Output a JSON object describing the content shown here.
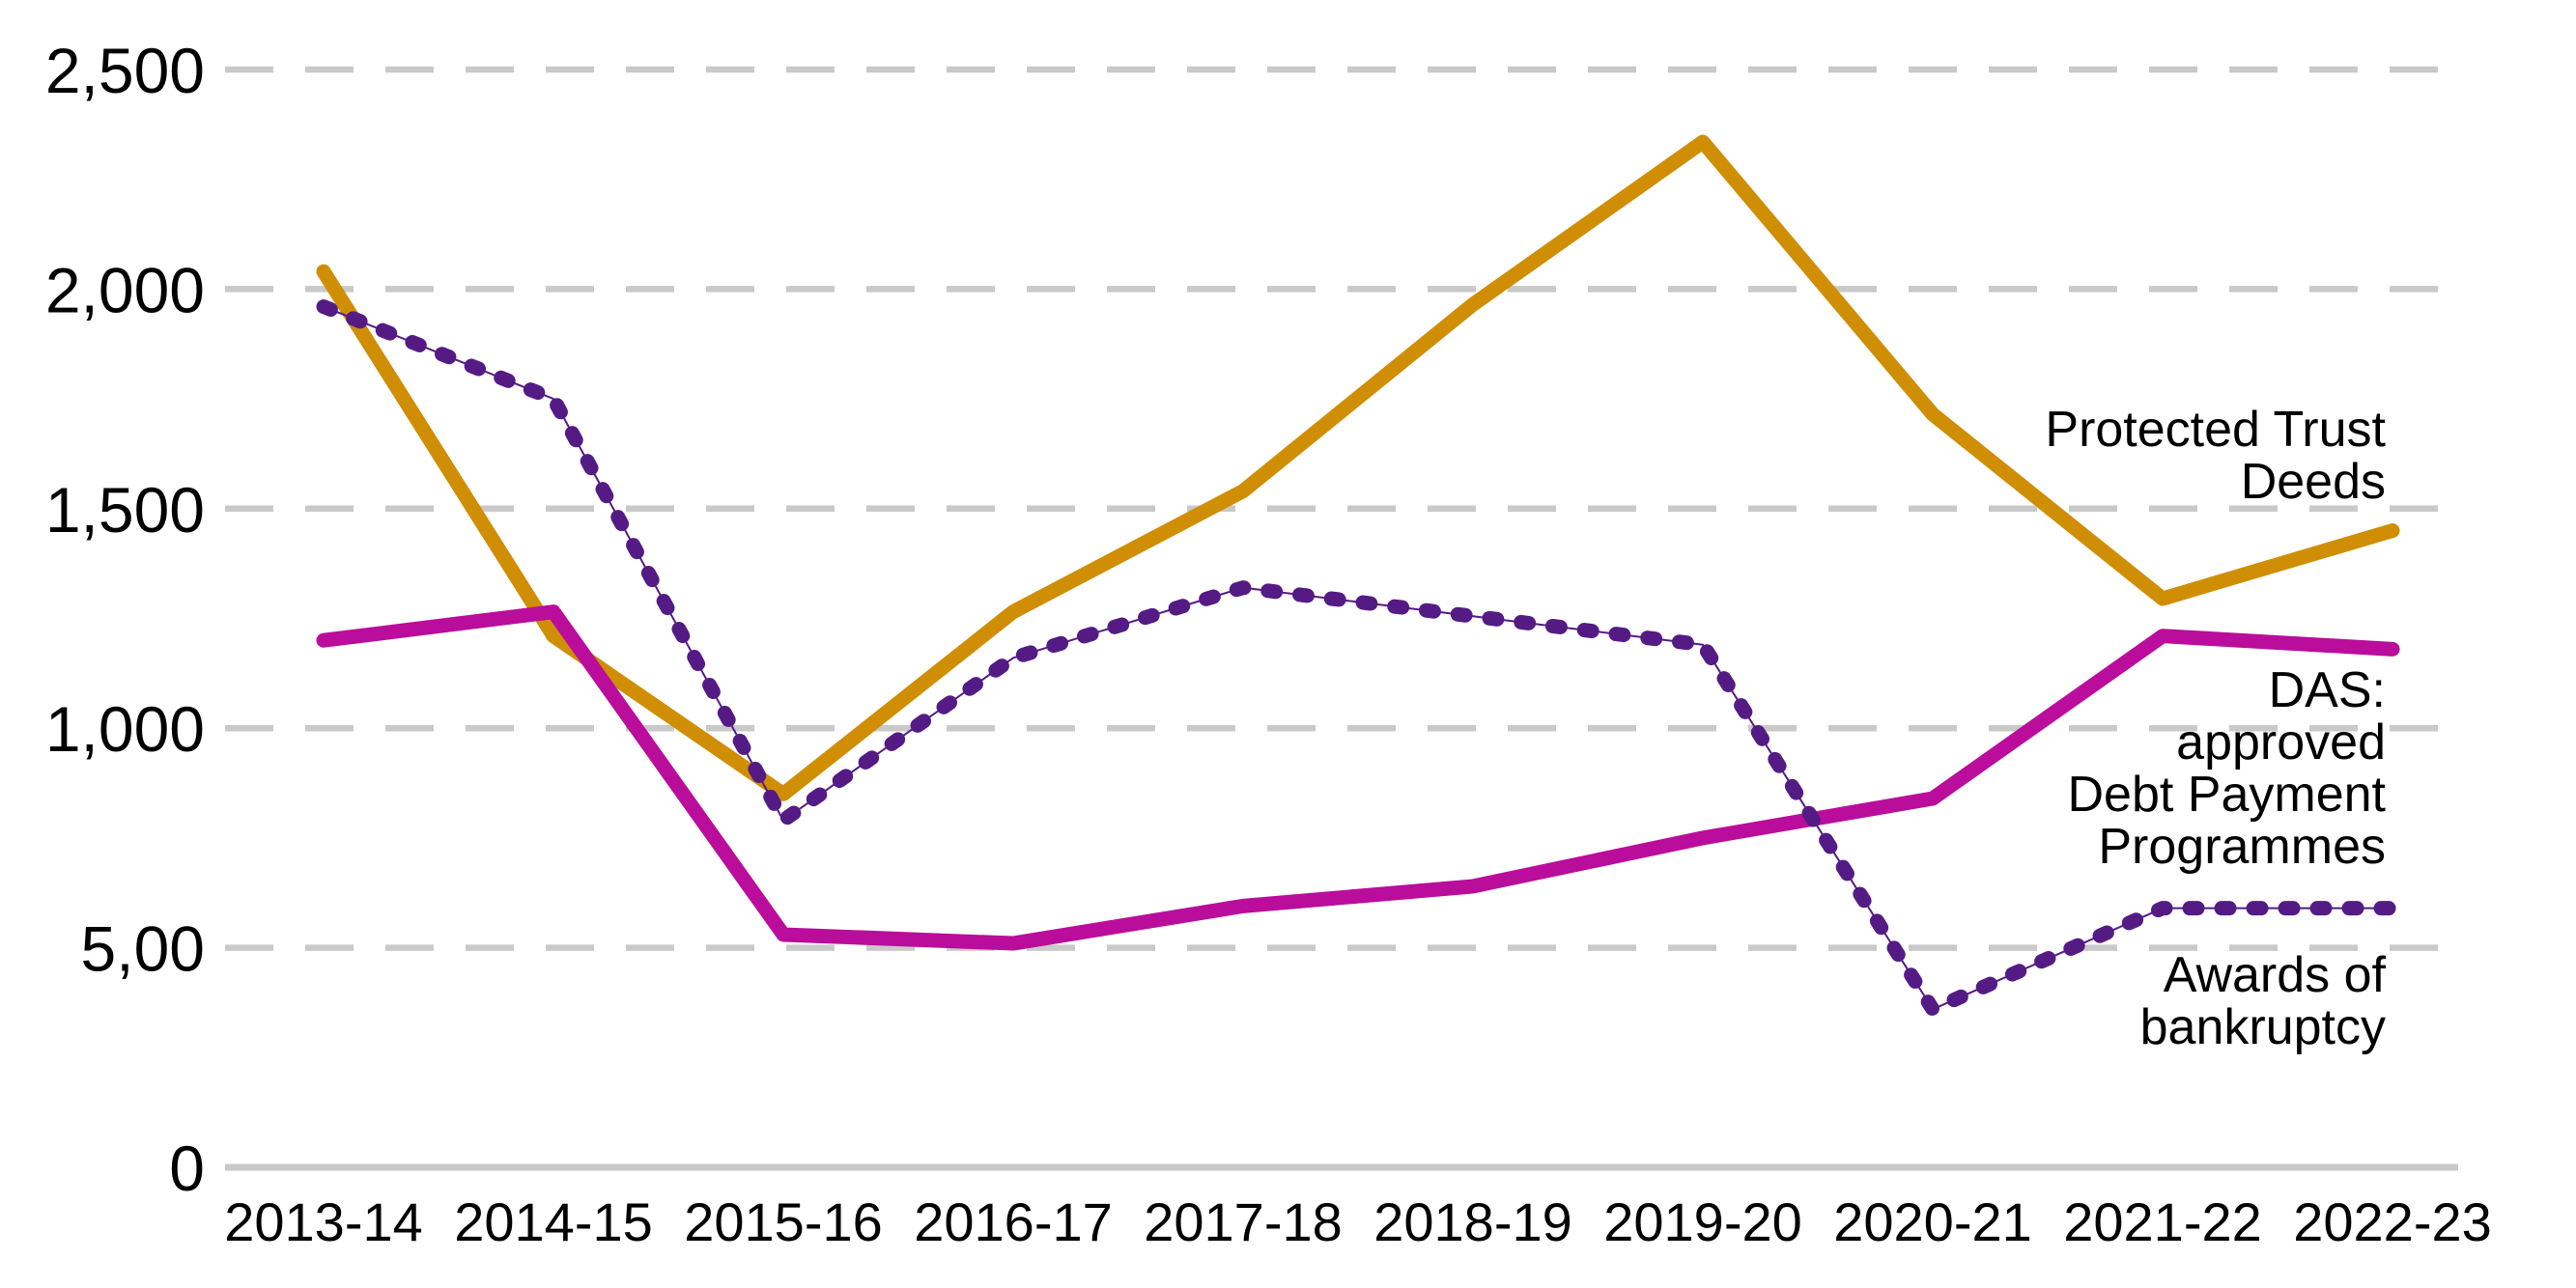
{
  "chart_data": {
    "type": "line",
    "title": "",
    "categories": [
      "2013-14",
      "2014-15",
      "2015-16",
      "2016-17",
      "2017-18",
      "2018-19",
      "2019-20",
      "2020-21",
      "2021-22",
      "2022-23"
    ],
    "y_axis": {
      "tick_labels": [
        "0",
        "5,00",
        "1,000",
        "1,500",
        "2,000",
        "2,500"
      ],
      "tick_values": [
        0,
        500,
        1000,
        1500,
        2000,
        2500
      ],
      "min": 0,
      "max": 2500,
      "gridlines": "dashed-horizontal"
    },
    "series": [
      {
        "name": "Protected Trust Deeds",
        "label_lines": [
          "Protected Trust",
          "Deeds"
        ],
        "color": "#CF8E04",
        "line_style": "solid",
        "values": [
          2040,
          1210,
          850,
          1265,
          1540,
          1965,
          2335,
          1715,
          1295,
          1450
        ]
      },
      {
        "name": "DAS: approved Debt Payment Programmes",
        "label_lines": [
          "DAS:",
          "approved",
          "Debt Payment",
          "Programmes"
        ],
        "color": "#BA0D9B",
        "line_style": "solid",
        "values": [
          1200,
          1265,
          530,
          510,
          595,
          640,
          750,
          840,
          1210,
          1180
        ]
      },
      {
        "name": "Awards of bankruptcy",
        "label_lines": [
          "Awards of",
          "bankruptcy"
        ],
        "color": "#541B85",
        "line_style": "dashed",
        "values": [
          1960,
          1750,
          790,
          1160,
          1320,
          1255,
          1190,
          360,
          590,
          590
        ]
      }
    ],
    "legend_position": "inline-right",
    "grid_color": "#C9C9C9",
    "axis_color": "#C9C9C9",
    "text_color": "#000000",
    "background": "#FFFFFF"
  }
}
